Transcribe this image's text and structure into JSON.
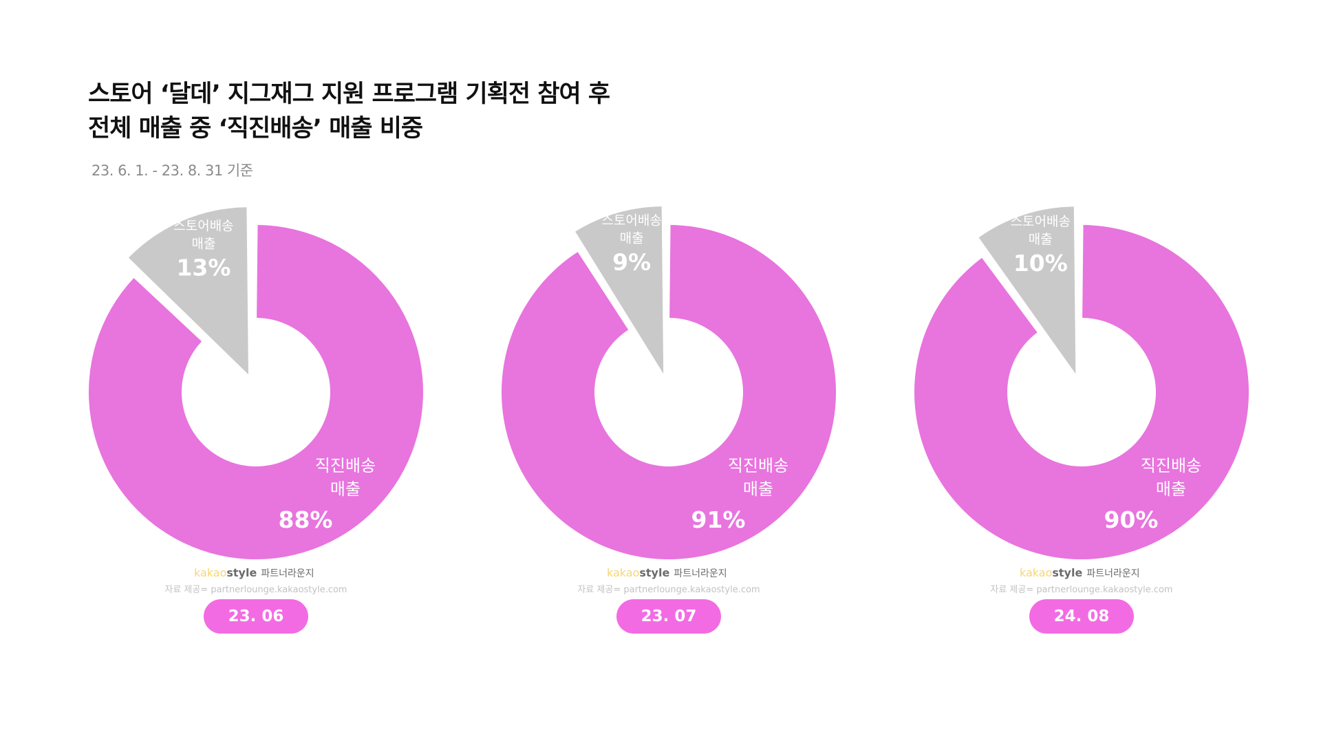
{
  "title": {
    "line1": "스토어 ‘달데’ 지그재그 지원 프로그램 기획전 참여 후",
    "line2": "전체 매출 중 ‘직진배송’ 매출 비중"
  },
  "subtitle": "23. 6. 1. - 23. 8. 31 기준",
  "colors": {
    "direct": "#e874de",
    "store": "#c9c9c9",
    "pill": "#f36be3",
    "background": "#ffffff"
  },
  "watermark": {
    "brand_kakao": "kakao",
    "brand_style": "style",
    "brand_suffix": "파트너라운지",
    "source": "자료 제공= partnerlounge.kakaostyle.com"
  },
  "chart_data": [
    {
      "type": "pie",
      "period": "23. 06",
      "categories": [
        "스토어배송 매출",
        "직진배송 매출"
      ],
      "values": [
        13,
        88
      ],
      "labels": [
        {
          "line1": "스토어배송",
          "line2": "매출",
          "pct": "13%"
        },
        {
          "line1": "직진배송",
          "line2": "매출",
          "pct": "88%"
        }
      ],
      "exploded": "스토어배송 매출",
      "donut": true
    },
    {
      "type": "pie",
      "period": "23. 07",
      "categories": [
        "스토어배송 매출",
        "직진배송 매출"
      ],
      "values": [
        9,
        91
      ],
      "labels": [
        {
          "line1": "스토어배송",
          "line2": "매출",
          "pct": "9%"
        },
        {
          "line1": "직진배송",
          "line2": "매출",
          "pct": "91%"
        }
      ],
      "exploded": "스토어배송 매출",
      "donut": true
    },
    {
      "type": "pie",
      "period": "24. 08",
      "categories": [
        "스토어배송 매출",
        "직진배송 매출"
      ],
      "values": [
        10,
        90
      ],
      "labels": [
        {
          "line1": "스토어배송",
          "line2": "매출",
          "pct": "10%"
        },
        {
          "line1": "직진배송",
          "line2": "매출",
          "pct": "90%"
        }
      ],
      "exploded": "스토어배송 매출",
      "donut": true
    }
  ]
}
